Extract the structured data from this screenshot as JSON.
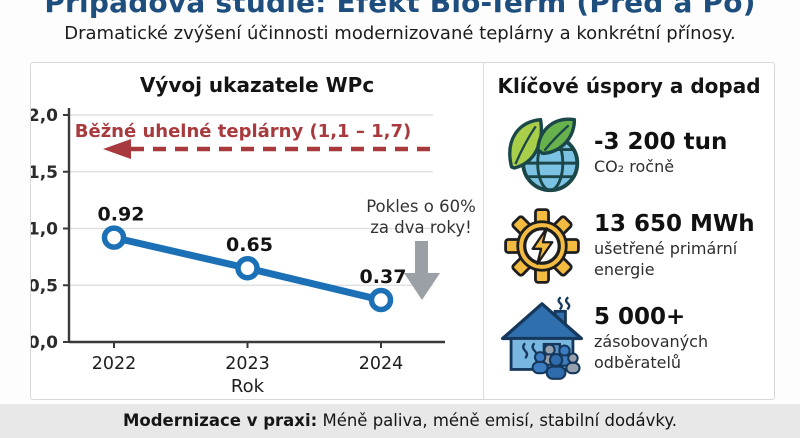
{
  "header": {
    "title": "Případová studie: Efekt Bio-Term (Před a Po)",
    "subtitle": "Dramatické zvýšení účinnosti modernizované teplárny a konkrétní přínosy."
  },
  "left_panel": {
    "title": "Vývoj ukazatele WPc",
    "annotation_line1": "Pokles o 60%",
    "annotation_line2": "za dva roky!"
  },
  "chart_data": {
    "type": "line",
    "title": "Vývoj ukazatele WPc",
    "x": [
      "2022",
      "2023",
      "2024"
    ],
    "values": [
      0.92,
      0.65,
      0.37
    ],
    "point_labels": [
      "0.92",
      "0.65",
      "0.37"
    ],
    "xlabel": "Rok",
    "ylim": [
      0,
      2
    ],
    "yticks": [
      {
        "value": 0,
        "label": "0,0"
      },
      {
        "value": 0.5,
        "label": "0,5"
      },
      {
        "value": 1,
        "label": "1,0"
      },
      {
        "value": 1.5,
        "label": "1,5"
      },
      {
        "value": 2,
        "label": "2,0"
      }
    ],
    "grid": true,
    "legend": "none",
    "line_color": "#1c70b6",
    "marker": "open-circle",
    "reference_line": {
      "value": 1.7,
      "label": "Běžné uhelné teplárny (1,1 – 1,7)",
      "color": "#a83a3e",
      "style": "dashed-arrow-left"
    },
    "annotation": "Pokles o 60% za dva roky!"
  },
  "right_panel": {
    "title": "Klíčové úspory a dopad",
    "stats": [
      {
        "icon": "eco-globe-icon",
        "value": "-3 200 tun",
        "caption": "CO₂ ročně"
      },
      {
        "icon": "gear-energy-icon",
        "value": "13 650 MWh",
        "caption": "ušetřené primární energie"
      },
      {
        "icon": "house-customers-icon",
        "value": "5 000+",
        "caption": "zásobovaných odběratelů"
      }
    ]
  },
  "footer": {
    "lead": "Modernizace v praxi:",
    "text": "Méně paliva, méně emisí, stabilní dodávky."
  },
  "colors": {
    "title_blue": "#1d4e7e",
    "line_blue": "#1c70b6",
    "reference_red": "#a83a3e",
    "arrow_gray": "#9aa0a6",
    "footer_bg": "#e8e8e8"
  }
}
